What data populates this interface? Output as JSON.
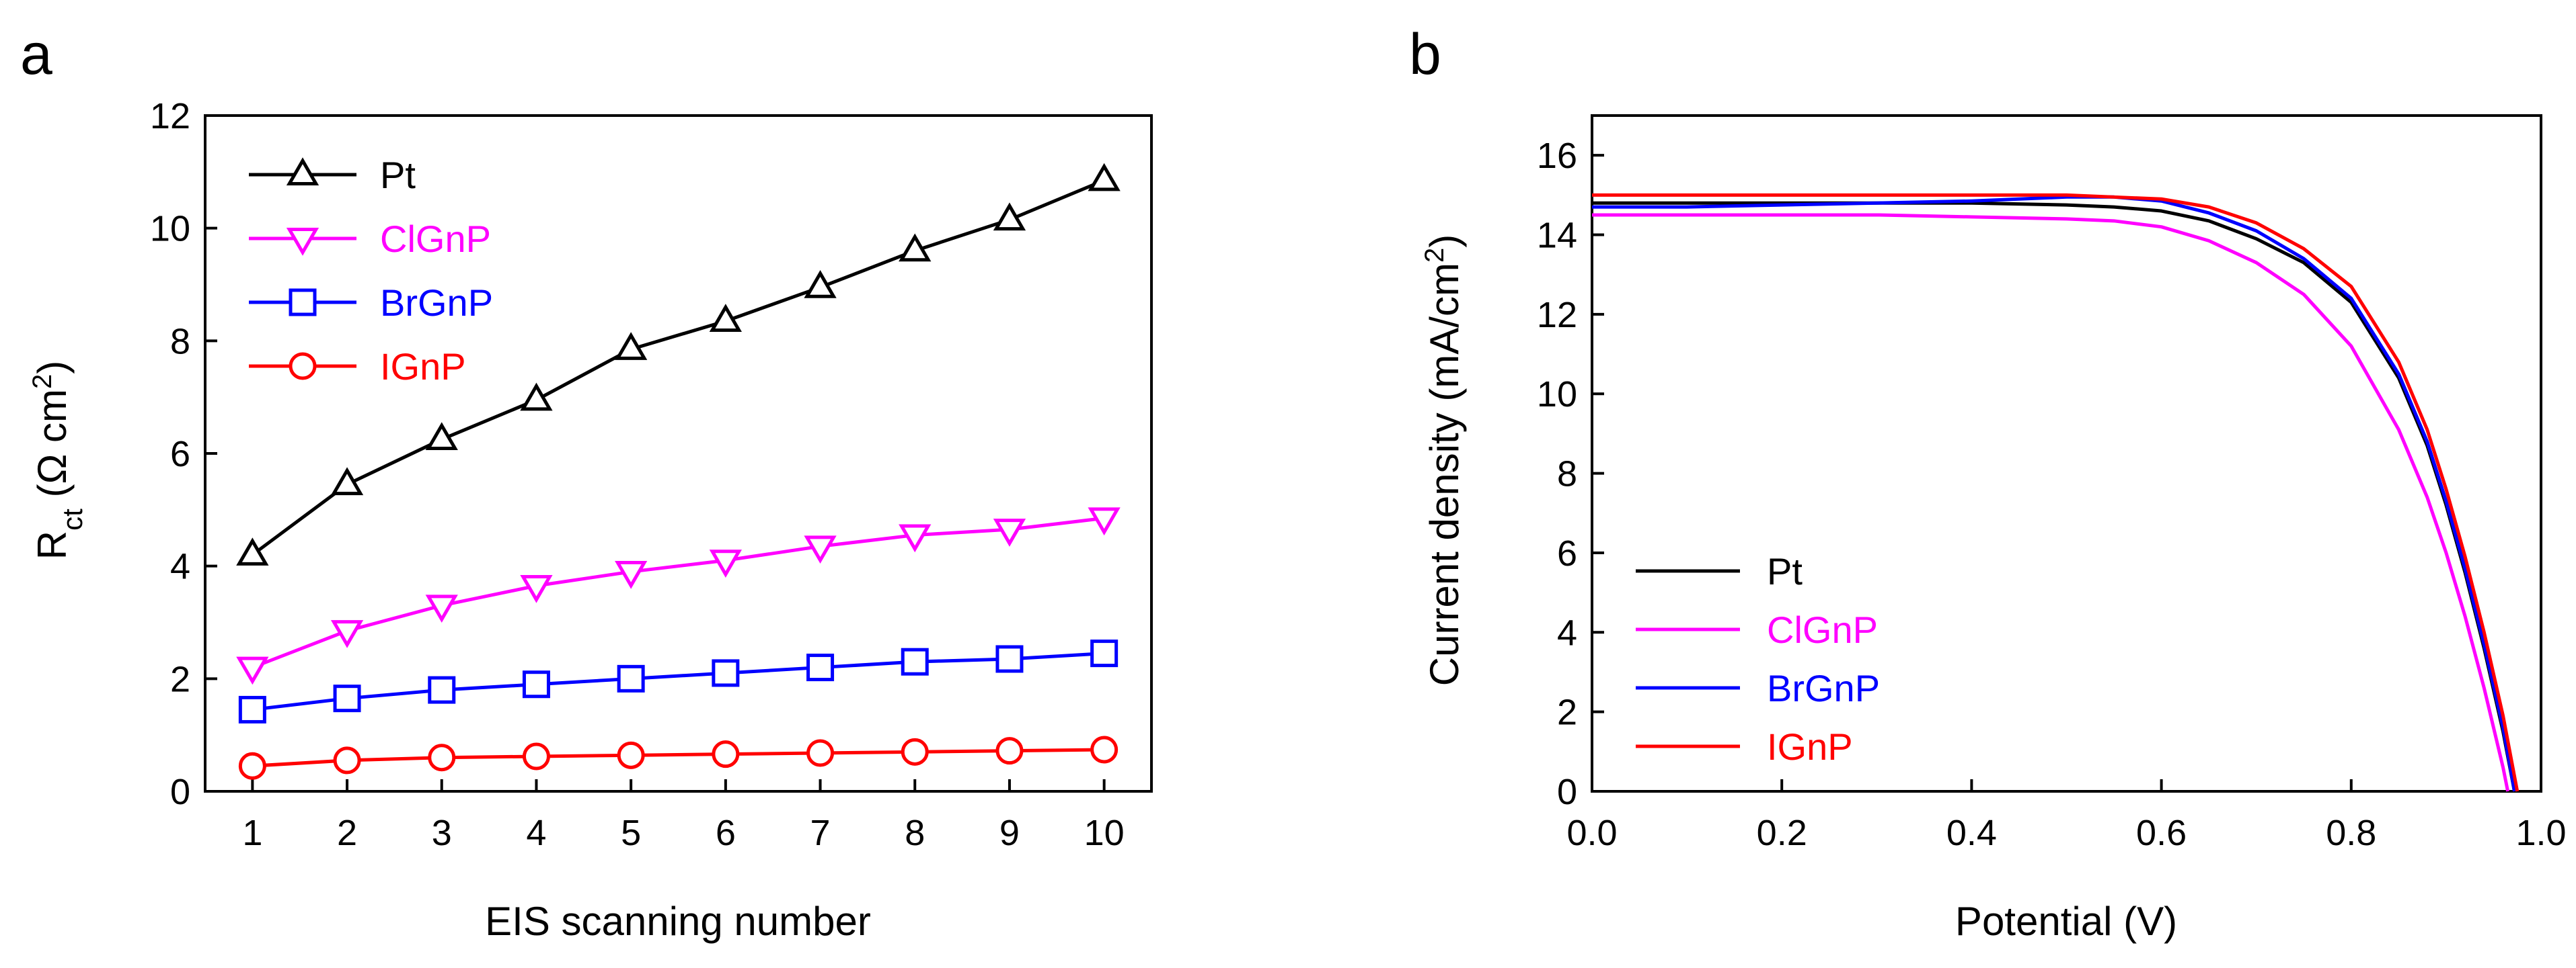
{
  "chart_data": [
    {
      "panel_label": "a",
      "type": "line",
      "xlabel": "EIS scanning number",
      "ylabel": {
        "main": "R",
        "sub": "ct",
        "unit_open": " (Ω cm",
        "unit_sup": "2",
        "unit_close": ")"
      },
      "xlim": [
        0.5,
        10.5
      ],
      "ylim": [
        0,
        12
      ],
      "xticks": [
        1,
        2,
        3,
        4,
        5,
        6,
        7,
        8,
        9,
        10
      ],
      "yticks": [
        0,
        2,
        4,
        6,
        8,
        10,
        12
      ],
      "legend_position": "top-left",
      "x": [
        1,
        2,
        3,
        4,
        5,
        6,
        7,
        8,
        9,
        10
      ],
      "series": [
        {
          "name": "Pt",
          "color": "#000000",
          "marker": "triangle-up",
          "values": [
            4.2,
            5.45,
            6.25,
            6.95,
            7.85,
            8.35,
            8.95,
            9.6,
            10.15,
            10.85
          ]
        },
        {
          "name": "ClGnP",
          "color": "#ff00ff",
          "marker": "triangle-down",
          "values": [
            2.2,
            2.85,
            3.3,
            3.65,
            3.9,
            4.1,
            4.35,
            4.55,
            4.65,
            4.85
          ]
        },
        {
          "name": "BrGnP",
          "color": "#0000ff",
          "marker": "square",
          "values": [
            1.45,
            1.65,
            1.8,
            1.9,
            2.0,
            2.1,
            2.2,
            2.3,
            2.35,
            2.45
          ]
        },
        {
          "name": "IGnP",
          "color": "#ff0000",
          "marker": "circle",
          "values": [
            0.45,
            0.55,
            0.6,
            0.62,
            0.64,
            0.66,
            0.68,
            0.7,
            0.72,
            0.74
          ]
        }
      ]
    },
    {
      "panel_label": "b",
      "type": "line",
      "xlabel": "Potential (V)",
      "ylabel": {
        "main": "Current density (mA/cm",
        "sup": "2",
        "close": ")"
      },
      "xlim": [
        0.0,
        1.0
      ],
      "ylim": [
        0,
        17
      ],
      "xticks": [
        "0.0",
        "0.2",
        "0.4",
        "0.6",
        "0.8",
        "1.0"
      ],
      "yticks": [
        0,
        2,
        4,
        6,
        8,
        10,
        12,
        14,
        16
      ],
      "legend_position": "bottom-left",
      "series": [
        {
          "name": "Pt",
          "color": "#000000",
          "x": [
            0.0,
            0.1,
            0.2,
            0.3,
            0.4,
            0.5,
            0.55,
            0.6,
            0.65,
            0.7,
            0.75,
            0.8,
            0.85,
            0.88,
            0.9,
            0.92,
            0.94,
            0.96,
            0.972
          ],
          "y": [
            14.8,
            14.8,
            14.8,
            14.8,
            14.8,
            14.75,
            14.7,
            14.6,
            14.35,
            13.9,
            13.3,
            12.3,
            10.4,
            8.7,
            7.2,
            5.5,
            3.6,
            1.5,
            0
          ]
        },
        {
          "name": "ClGnP",
          "color": "#ff00ff",
          "x": [
            0.0,
            0.1,
            0.2,
            0.3,
            0.4,
            0.5,
            0.55,
            0.6,
            0.65,
            0.7,
            0.75,
            0.8,
            0.85,
            0.88,
            0.9,
            0.92,
            0.94,
            0.96,
            0.965
          ],
          "y": [
            14.5,
            14.5,
            14.5,
            14.5,
            14.45,
            14.4,
            14.35,
            14.2,
            13.85,
            13.3,
            12.5,
            11.2,
            9.1,
            7.4,
            6.0,
            4.4,
            2.6,
            0.6,
            0
          ]
        },
        {
          "name": "BrGnP",
          "color": "#0000ff",
          "x": [
            0.0,
            0.1,
            0.2,
            0.3,
            0.4,
            0.5,
            0.55,
            0.6,
            0.65,
            0.7,
            0.75,
            0.8,
            0.85,
            0.88,
            0.9,
            0.92,
            0.94,
            0.96,
            0.972
          ],
          "y": [
            14.7,
            14.7,
            14.75,
            14.8,
            14.85,
            14.95,
            14.95,
            14.85,
            14.55,
            14.1,
            13.4,
            12.4,
            10.5,
            8.8,
            7.3,
            5.6,
            3.7,
            1.6,
            0
          ]
        },
        {
          "name": "IGnP",
          "color": "#ff0000",
          "x": [
            0.0,
            0.1,
            0.2,
            0.3,
            0.4,
            0.5,
            0.55,
            0.6,
            0.65,
            0.7,
            0.75,
            0.8,
            0.85,
            0.88,
            0.9,
            0.92,
            0.94,
            0.96,
            0.975
          ],
          "y": [
            15.0,
            15.0,
            15.0,
            15.0,
            15.0,
            15.0,
            14.95,
            14.9,
            14.7,
            14.3,
            13.65,
            12.7,
            10.8,
            9.1,
            7.6,
            5.9,
            4.0,
            1.9,
            0
          ]
        }
      ]
    }
  ]
}
